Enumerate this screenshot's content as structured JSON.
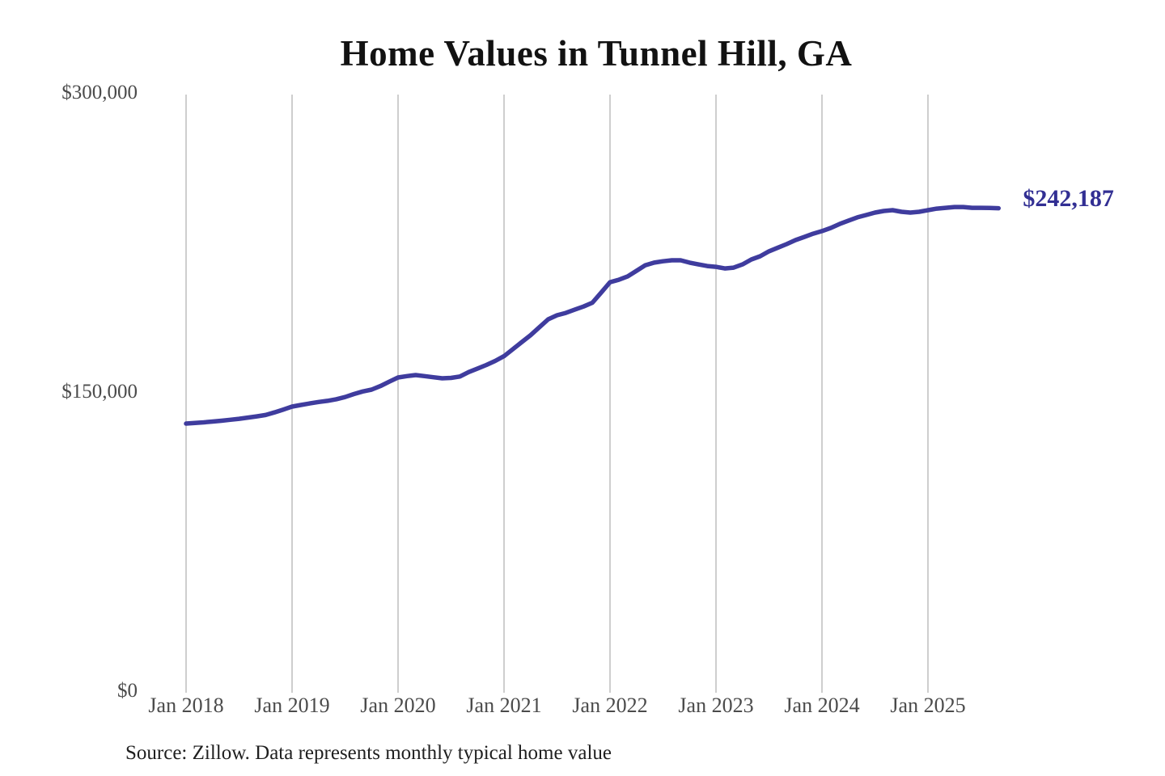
{
  "end_label_text": "$242,187",
  "source_note": "Source: Zillow. Data represents monthly typical home value",
  "colors": {
    "line": "#3f3c9e",
    "end_label": "#322f93",
    "grid": "#c9c9c9",
    "axis_text": "#4b4b4b",
    "title": "#121212",
    "source": "#1f1f1f",
    "background": "#ffffff"
  },
  "chart_data": {
    "type": "line",
    "title": "Home Values in Tunnel Hill, GA",
    "xlabel": "",
    "ylabel": "",
    "ylim": [
      0,
      300000
    ],
    "y_ticks": [
      0,
      150000,
      300000
    ],
    "y_tick_labels": [
      "$0",
      "$150,000",
      "$300,000"
    ],
    "x_tick_labels": [
      "Jan 2018",
      "Jan 2019",
      "Jan 2020",
      "Jan 2021",
      "Jan 2022",
      "Jan 2023",
      "Jan 2024",
      "Jan 2025"
    ],
    "grid": "vertical-year-gridlines-only",
    "legend": "none",
    "frequency": "monthly",
    "unit": "USD",
    "annotation": {
      "text": "$242,187",
      "value": 242187,
      "position": "end-of-line"
    },
    "series": [
      {
        "name": "Typical home value",
        "x": [
          "2018-01",
          "2018-02",
          "2018-03",
          "2018-04",
          "2018-05",
          "2018-06",
          "2018-07",
          "2018-08",
          "2018-09",
          "2018-10",
          "2018-11",
          "2018-12",
          "2019-01",
          "2019-02",
          "2019-03",
          "2019-04",
          "2019-05",
          "2019-06",
          "2019-07",
          "2019-08",
          "2019-09",
          "2019-10",
          "2019-11",
          "2019-12",
          "2020-01",
          "2020-02",
          "2020-03",
          "2020-04",
          "2020-05",
          "2020-06",
          "2020-07",
          "2020-08",
          "2020-09",
          "2020-10",
          "2020-11",
          "2020-12",
          "2021-01",
          "2021-02",
          "2021-03",
          "2021-04",
          "2021-05",
          "2021-06",
          "2021-07",
          "2021-08",
          "2021-09",
          "2021-10",
          "2021-11",
          "2021-12",
          "2022-01",
          "2022-02",
          "2022-03",
          "2022-04",
          "2022-05",
          "2022-06",
          "2022-07",
          "2022-08",
          "2022-09",
          "2022-10",
          "2022-11",
          "2022-12",
          "2023-01",
          "2023-02",
          "2023-03",
          "2023-04",
          "2023-05",
          "2023-06",
          "2023-07",
          "2023-08",
          "2023-09",
          "2023-10",
          "2023-11",
          "2023-12",
          "2024-01",
          "2024-02",
          "2024-03",
          "2024-04",
          "2024-05",
          "2024-06",
          "2024-07",
          "2024-08",
          "2024-09",
          "2024-10",
          "2024-11",
          "2024-12",
          "2025-01",
          "2025-02",
          "2025-03",
          "2025-04",
          "2025-05",
          "2025-06",
          "2025-07",
          "2025-08",
          "2025-09"
        ],
        "values": [
          134200,
          134500,
          134800,
          135200,
          135600,
          136100,
          136600,
          137200,
          137800,
          138500,
          139800,
          141200,
          142700,
          143500,
          144300,
          145000,
          145600,
          146400,
          147500,
          149000,
          150300,
          151200,
          153000,
          155200,
          157300,
          158000,
          158500,
          158000,
          157400,
          156900,
          157100,
          157800,
          160000,
          161800,
          163600,
          165600,
          168000,
          171500,
          175000,
          178500,
          182500,
          186500,
          188500,
          189700,
          191300,
          192900,
          194800,
          199900,
          205100,
          206300,
          208000,
          210800,
          213600,
          214900,
          215600,
          216100,
          216100,
          214900,
          214000,
          213200,
          212800,
          212000,
          212400,
          214000,
          216500,
          218100,
          220600,
          222400,
          224200,
          226200,
          227800,
          229400,
          230700,
          232300,
          234300,
          236000,
          237600,
          238800,
          240000,
          240800,
          241200,
          240400,
          240000,
          240400,
          241200,
          242000,
          242400,
          242800,
          242800,
          242400,
          242400,
          242300,
          242187
        ]
      }
    ]
  }
}
